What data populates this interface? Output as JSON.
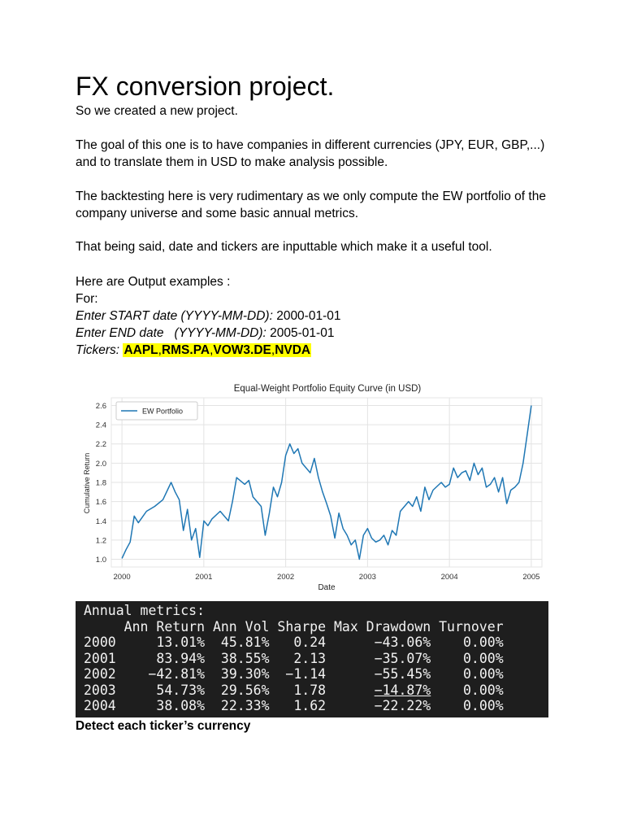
{
  "doc": {
    "title": "FX conversion project.",
    "p1": "So we created a new project.",
    "p2": "The goal of this one is to have companies in different currencies (JPY, EUR, GBP,...) and to translate them in USD to make analysis possible.",
    "p3": "The backtesting here is very rudimentary as we only compute the EW portfolio of the company universe and some basic annual metrics.",
    "p4": "That being said, date and tickers are inputtable which make it a useful tool.",
    "p5": "Here are Output examples :",
    "p6": "For:",
    "start_label": "Enter START date (YYYY-MM-DD):",
    "start_value": " 2000-01-01",
    "end_label": "Enter END date   (YYYY-MM-DD):",
    "end_value": " 2005-01-01",
    "tickers_label": "Tickers:",
    "ticker1": "AAPL",
    "ticker2": "RMS.PA",
    "ticker3": "VOW3.DE",
    "ticker4": "NVDA",
    "comma": ",",
    "section2": "Detect each ticker’s currency"
  },
  "chart_data": {
    "type": "line",
    "title": "Equal-Weight Portfolio Equity Curve (in USD)",
    "xlabel": "Date",
    "ylabel": "Cumulative Return",
    "xlim": [
      1999.87,
      2005.13
    ],
    "ylim": [
      0.92,
      2.68
    ],
    "x_ticks": [
      "2000",
      "2001",
      "2002",
      "2003",
      "2004",
      "2005"
    ],
    "y_ticks": [
      "1.0",
      "1.2",
      "1.4",
      "1.6",
      "1.8",
      "2.0",
      "2.2",
      "2.4",
      "2.6"
    ],
    "grid": true,
    "legend_position": "top-left",
    "line_color": "#1f77b4",
    "series": [
      {
        "name": "EW Portfolio",
        "x": [
          2000.0,
          2000.05,
          2000.1,
          2000.15,
          2000.2,
          2000.3,
          2000.4,
          2000.5,
          2000.6,
          2000.65,
          2000.7,
          2000.75,
          2000.8,
          2000.85,
          2000.9,
          2000.95,
          2001.0,
          2001.05,
          2001.1,
          2001.2,
          2001.3,
          2001.35,
          2001.4,
          2001.5,
          2001.55,
          2001.6,
          2001.7,
          2001.75,
          2001.8,
          2001.85,
          2001.9,
          2001.95,
          2002.0,
          2002.05,
          2002.1,
          2002.15,
          2002.2,
          2002.3,
          2002.35,
          2002.4,
          2002.45,
          2002.5,
          2002.55,
          2002.6,
          2002.65,
          2002.7,
          2002.75,
          2002.8,
          2002.85,
          2002.9,
          2002.95,
          2003.0,
          2003.05,
          2003.1,
          2003.15,
          2003.2,
          2003.25,
          2003.3,
          2003.35,
          2003.4,
          2003.5,
          2003.55,
          2003.6,
          2003.65,
          2003.7,
          2003.75,
          2003.8,
          2003.9,
          2003.95,
          2004.0,
          2004.05,
          2004.1,
          2004.15,
          2004.2,
          2004.25,
          2004.3,
          2004.35,
          2004.4,
          2004.45,
          2004.5,
          2004.55,
          2004.6,
          2004.65,
          2004.7,
          2004.75,
          2004.8,
          2004.85,
          2004.9,
          2004.95,
          2005.0
        ],
        "values": [
          1.01,
          1.1,
          1.18,
          1.45,
          1.38,
          1.5,
          1.55,
          1.62,
          1.8,
          1.7,
          1.62,
          1.3,
          1.52,
          1.2,
          1.32,
          1.02,
          1.4,
          1.35,
          1.42,
          1.5,
          1.4,
          1.6,
          1.85,
          1.78,
          1.82,
          1.65,
          1.55,
          1.25,
          1.48,
          1.75,
          1.65,
          1.8,
          2.08,
          2.2,
          2.1,
          2.15,
          2.0,
          1.9,
          2.05,
          1.85,
          1.7,
          1.58,
          1.45,
          1.22,
          1.48,
          1.32,
          1.25,
          1.15,
          1.2,
          1.0,
          1.25,
          1.32,
          1.22,
          1.18,
          1.2,
          1.25,
          1.15,
          1.3,
          1.25,
          1.5,
          1.6,
          1.55,
          1.65,
          1.5,
          1.75,
          1.62,
          1.72,
          1.8,
          1.75,
          1.78,
          1.95,
          1.85,
          1.9,
          1.92,
          1.82,
          2.0,
          1.88,
          1.95,
          1.75,
          1.78,
          1.85,
          1.7,
          1.85,
          1.58,
          1.72,
          1.75,
          1.8,
          2.0,
          2.3,
          2.6
        ]
      }
    ]
  },
  "terminal": {
    "title": "Annual metrics:",
    "header": "     Ann Return Ann Vol Sharpe Max Drawdown Turnover",
    "rows": [
      {
        "year": "2000",
        "ann_return": "13.01%",
        "ann_vol": "45.81%",
        "sharpe": "0.24",
        "max_drawdown": "−43.06%",
        "turnover": "0.00%"
      },
      {
        "year": "2001",
        "ann_return": "83.94%",
        "ann_vol": "38.55%",
        "sharpe": "2.13",
        "max_drawdown": "−35.07%",
        "turnover": "0.00%"
      },
      {
        "year": "2002",
        "ann_return": "−42.81%",
        "ann_vol": "39.30%",
        "sharpe": "−1.14",
        "max_drawdown": "−55.45%",
        "turnover": "0.00%"
      },
      {
        "year": "2003",
        "ann_return": "54.73%",
        "ann_vol": "29.56%",
        "sharpe": "1.78",
        "max_drawdown": "−14.87%",
        "turnover": "0.00%"
      },
      {
        "year": "2004",
        "ann_return": "38.08%",
        "ann_vol": "22.33%",
        "sharpe": "1.62",
        "max_drawdown": "−22.22%",
        "turnover": "0.00%"
      }
    ]
  }
}
